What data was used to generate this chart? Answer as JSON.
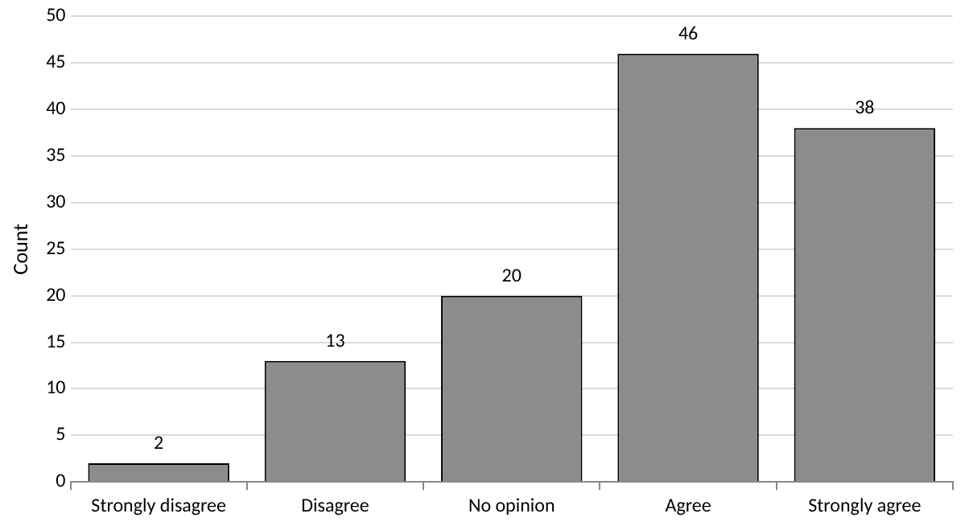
{
  "chart_data": {
    "type": "bar",
    "ylabel": "Count",
    "categories": [
      "Strongly disagree",
      "Disagree",
      "No opinion",
      "Agree",
      "Strongly agree"
    ],
    "values": [
      2,
      13,
      20,
      46,
      38
    ],
    "color": "#8c8c8c",
    "ylim": [
      0,
      50
    ],
    "yticks": [
      0,
      5,
      10,
      15,
      20,
      25,
      30,
      35,
      40,
      45,
      50
    ],
    "grid": "y",
    "data_labels": true
  }
}
